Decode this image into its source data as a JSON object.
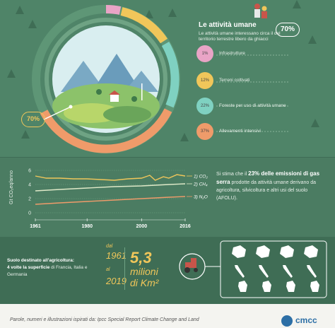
{
  "header": {
    "title": "Le attività umane",
    "subtitle": "Le attività umane interessano circa il",
    "subtitle_tail": "del territorio terrestre libero da ghiacci",
    "percent": "70%"
  },
  "ring": {
    "percent_label": "70%"
  },
  "categories": [
    {
      "pct": "1%",
      "label": "Infrastrutture",
      "color": "#e9a4c6"
    },
    {
      "pct": "12%",
      "label": "Terreni coltivati",
      "color": "#f0c65a"
    },
    {
      "pct": "22%",
      "label": "Foreste per uso di attività umane",
      "color": "#7fd1c1"
    },
    {
      "pct": "37%",
      "label": "Allevamenti intensivi",
      "color": "#ef9b6a"
    }
  ],
  "chart_data": {
    "type": "line",
    "ylabel": "Gt CO₂eq/anno",
    "yticks": [
      "0",
      "2",
      "4",
      "6"
    ],
    "ylim": [
      0,
      6.6
    ],
    "xticks": [
      "1961",
      "1980",
      "2000",
      "2016"
    ],
    "xlim": [
      1961,
      2016
    ],
    "series": [
      {
        "id": "co2",
        "marker": "1",
        "name": "CO₂",
        "color": "#f0c65a",
        "x": [
          1961,
          1965,
          1970,
          1975,
          1980,
          1985,
          1990,
          1995,
          2000,
          2003,
          2005,
          2008,
          2010,
          2013,
          2016
        ],
        "values": [
          5.2,
          4.9,
          4.9,
          4.8,
          4.8,
          4.7,
          4.6,
          4.8,
          4.9,
          5.3,
          4.6,
          5.1,
          4.9,
          5.4,
          5.2
        ]
      },
      {
        "id": "ch4",
        "marker": "2",
        "name": "CH₄",
        "color": "#dfe9c8",
        "x": [
          1961,
          1970,
          1980,
          1990,
          2000,
          2010,
          2016
        ],
        "values": [
          3.1,
          3.3,
          3.5,
          3.7,
          3.8,
          4.0,
          4.1
        ]
      },
      {
        "id": "n2o",
        "marker": "3",
        "name": "N₂O",
        "color": "#ef9b6a",
        "x": [
          1961,
          1970,
          1980,
          1990,
          2000,
          2010,
          2016
        ],
        "values": [
          1.2,
          1.4,
          1.6,
          1.8,
          2.0,
          2.2,
          2.3
        ]
      }
    ]
  },
  "chart_text": {
    "lead": "Si stima che il",
    "highlight": "23% delle emissioni di gas serra",
    "rest": "prodotte da attività umane derivano da agricoltura, silvicoltura e altri usi del suolo (AFOLU)."
  },
  "land": {
    "title": "Suolo destinato all'agricoltura:",
    "highlight": "4 volte la superficie",
    "rest": "di Francia, Italia e Germania",
    "from_label": "dal",
    "from_year": "1961",
    "to_label": "al",
    "to_year": "2019",
    "value": "5,3",
    "unit_line1": "milioni",
    "unit_line2": "di Km²"
  },
  "footer": {
    "credit": "Parole, numeri e illustrazioni ispirati da: Ipcc Special Report Climate Change and Land",
    "brand": "cmcc"
  }
}
